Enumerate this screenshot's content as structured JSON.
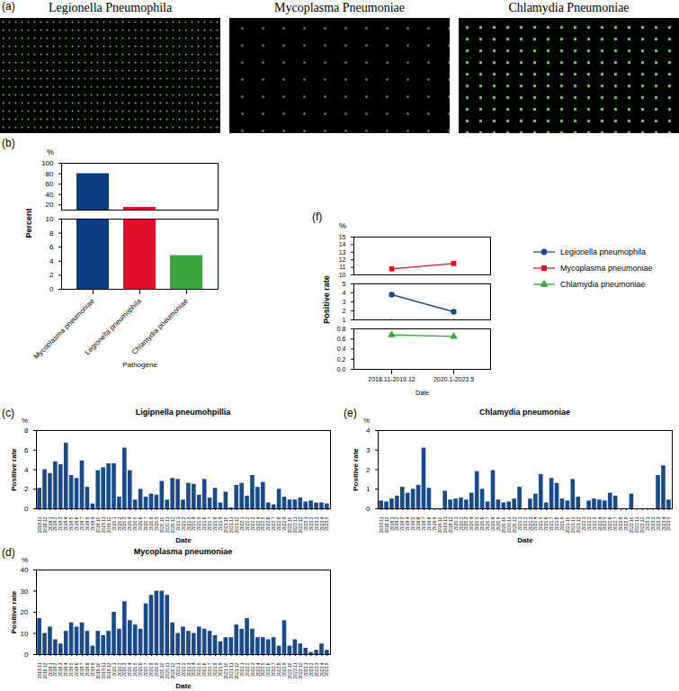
{
  "images": {
    "panel": "(a)",
    "labels": [
      "Legionella Pneumophila",
      "Mycoplasma Pneumoniae",
      "Chlamydia Pneumoniae"
    ]
  },
  "chart_data": [
    {
      "panel": "(b)",
      "type": "bar",
      "y_unit": "%",
      "y_label": "Percent",
      "x_label": "Pathogene",
      "categories": [
        "Mycoplasma pneumoniae",
        "Legionella pneumophila",
        "Chlamydia pneumoniae"
      ],
      "values": [
        80,
        15.2,
        4.8
      ],
      "colors": [
        "#0d3c80",
        "#e3102d",
        "#3aa640"
      ],
      "grid": false,
      "segments": [
        {
          "ylim": [
            0,
            10
          ],
          "yticks": [
            0,
            2,
            4,
            6,
            8,
            10
          ]
        },
        {
          "ylim": [
            10,
            100
          ],
          "yticks": [
            20,
            40,
            60,
            80,
            100
          ]
        }
      ]
    },
    {
      "panel": "(f)",
      "type": "line",
      "y_unit": "%",
      "y_label": "Positive rate",
      "x_label": "Date",
      "categories": [
        "2018.11-2019.12",
        "2020.1-2023.5"
      ],
      "legend": "right",
      "grid": false,
      "series": [
        {
          "name": "Legionella pneumophila",
          "color": "#1c4b8a",
          "marker": "circle",
          "values": [
            3.8,
            1.9
          ]
        },
        {
          "name": "Mycoplasma pneumoniae",
          "color": "#e3102d",
          "marker": "square",
          "values": [
            10.8,
            11.5
          ]
        },
        {
          "name": "Chlamydia pneumoniae",
          "color": "#3aa640",
          "marker": "triangle",
          "values": [
            0.68,
            0.65
          ]
        }
      ],
      "segments": [
        {
          "ylim": [
            0,
            0.8
          ],
          "yticks": [
            {
              "value": 0,
              "label": "0.0"
            },
            0.2,
            0.4,
            0.6,
            0.8
          ]
        },
        {
          "ylim": [
            1,
            5
          ],
          "yticks": [
            1,
            2,
            3,
            4,
            5
          ]
        },
        {
          "ylim": [
            10,
            15
          ],
          "yticks": [
            10,
            11,
            12,
            13,
            14,
            15
          ]
        }
      ]
    },
    {
      "panel": "(c)",
      "type": "bar",
      "title": "Ligipnella pneumohpillia",
      "y_unit": "%",
      "y_label": "Positive rate",
      "x_label": "Date",
      "color": "#1a4a87",
      "grid": false,
      "ylim": [
        0,
        8
      ],
      "yticks": [
        0,
        2,
        4,
        6,
        8
      ],
      "categories": [
        "2018.11",
        "2018.12",
        "2019.1",
        "2019.2",
        "2019.3",
        "2019.4",
        "2019.5",
        "2019.6",
        "2019.7",
        "2019.8",
        "2019.9",
        "2019.10",
        "2019.11",
        "2019.12",
        "2020.1",
        "2020.2",
        "2020.3",
        "2020.4",
        "2020.5",
        "2020.6",
        "2020.7",
        "2020.8",
        "2020.9",
        "2020.10",
        "2020.11",
        "2020.12",
        "2021.1",
        "2021.2",
        "2021.3",
        "2021.4",
        "2021.5",
        "2021.6",
        "2021.7",
        "2021.8",
        "2021.9",
        "2021.10",
        "2021.11",
        "2021.12",
        "2022.1",
        "2022.2",
        "2022.3",
        "2022.4",
        "2022.5",
        "2022.6",
        "2022.7",
        "2022.8",
        "2022.9",
        "2022.10",
        "2022.11",
        "2022.12",
        "2023.1",
        "2023.2",
        "2023.3",
        "2023.4",
        "2023.5"
      ],
      "values": [
        2.1,
        4.0,
        3.6,
        4.8,
        4.5,
        6.7,
        3.4,
        3.1,
        4.9,
        2.2,
        0.5,
        3.9,
        4.2,
        4.6,
        4.6,
        1.2,
        6.2,
        3.9,
        0.9,
        2.0,
        1.2,
        1.5,
        1.4,
        2.8,
        0.9,
        3.1,
        3.0,
        0.9,
        2.6,
        2.5,
        1.4,
        3.0,
        1.1,
        2.1,
        0.6,
        1.7,
        0.1,
        2.4,
        2.6,
        1.3,
        3.4,
        2.2,
        2.7,
        0.6,
        0.4,
        2.0,
        1.2,
        0.9,
        0.9,
        1.1,
        0.7,
        0.8,
        0.6,
        0.6,
        0.5
      ]
    },
    {
      "panel": "(d)",
      "type": "bar",
      "title": "Mycoplasma pneumoniae",
      "y_unit": "%",
      "y_label": "Positive rate",
      "x_label": "Date",
      "color": "#1a4a87",
      "grid": false,
      "ylim": [
        0,
        40
      ],
      "yticks": [
        0,
        10,
        20,
        30,
        40
      ],
      "categories": [
        "2018.11",
        "2018.12",
        "2019.1",
        "2019.2",
        "2019.3",
        "2019.4",
        "2019.5",
        "2019.6",
        "2019.7",
        "2019.8",
        "2019.9",
        "2019.10",
        "2019.11",
        "2019.12",
        "2020.1",
        "2020.2",
        "2020.3",
        "2020.4",
        "2020.5",
        "2020.6",
        "2020.7",
        "2020.8",
        "2020.9",
        "2020.10",
        "2020.11",
        "2020.12",
        "2021.1",
        "2021.2",
        "2021.3",
        "2021.4",
        "2021.5",
        "2021.6",
        "2021.7",
        "2021.8",
        "2021.9",
        "2021.10",
        "2021.11",
        "2021.12",
        "2022.1",
        "2022.2",
        "2022.3",
        "2022.4",
        "2022.5",
        "2022.6",
        "2022.7",
        "2022.8",
        "2022.9",
        "2022.10",
        "2022.11",
        "2022.12",
        "2023.1",
        "2023.2",
        "2023.3",
        "2023.4",
        "2023.5"
      ],
      "values": [
        17,
        10,
        13,
        7,
        5,
        11,
        15,
        13,
        15,
        11,
        4,
        11,
        9,
        11,
        20,
        12,
        25,
        16,
        14,
        12,
        24,
        28,
        30,
        30,
        28,
        15,
        10,
        13,
        11,
        10,
        13,
        12,
        11,
        9,
        6,
        8,
        8,
        14,
        12,
        17,
        12,
        8,
        8,
        7,
        8,
        4,
        16,
        4,
        7,
        5,
        3,
        1,
        2,
        5,
        2
      ]
    },
    {
      "panel": "(e)",
      "type": "bar",
      "title": "Chlamydia pneumoniae",
      "y_unit": "%",
      "y_label": "Positive rate",
      "x_label": "Date",
      "color": "#1a4a87",
      "grid": false,
      "ylim": [
        0,
        4
      ],
      "yticks": [
        0,
        1,
        2,
        3,
        4
      ],
      "categories": [
        "2018.11",
        "2018.12",
        "2019.1",
        "2019.2",
        "2019.3",
        "2019.4",
        "2019.5",
        "2019.6",
        "2019.7",
        "2019.8",
        "2019.9",
        "2019.10",
        "2019.11",
        "2019.12",
        "2020.1",
        "2020.2",
        "2020.3",
        "2020.4",
        "2020.5",
        "2020.6",
        "2020.7",
        "2020.8",
        "2020.9",
        "2020.10",
        "2020.11",
        "2020.12",
        "2021.1",
        "2021.2",
        "2021.3",
        "2021.4",
        "2021.5",
        "2021.6",
        "2021.7",
        "2021.8",
        "2021.9",
        "2021.10",
        "2021.11",
        "2021.12",
        "2022.1",
        "2022.2",
        "2022.3",
        "2022.4",
        "2022.5",
        "2022.6",
        "2022.7",
        "2022.8",
        "2022.9",
        "2022.10",
        "2022.11",
        "2022.12",
        "2023.1",
        "2023.2",
        "2023.3",
        "2023.4",
        "2023.5"
      ],
      "values": [
        0.4,
        0.35,
        0.5,
        0.65,
        1.1,
        0.8,
        1,
        1.2,
        3.1,
        1.05,
        0,
        0,
        0.9,
        0.45,
        0.5,
        0.55,
        0.45,
        0.8,
        1.9,
        1,
        0.35,
        1.95,
        0.45,
        0.3,
        0.35,
        0.5,
        1.1,
        0,
        0.5,
        0.75,
        1.75,
        0.3,
        1.55,
        1.3,
        0.5,
        0.4,
        1.5,
        0.6,
        0,
        0.4,
        0.5,
        0.45,
        0.4,
        0.8,
        0.65,
        0,
        0,
        0.75,
        0,
        0,
        0,
        0,
        1.7,
        2.2,
        0.45
      ]
    }
  ]
}
